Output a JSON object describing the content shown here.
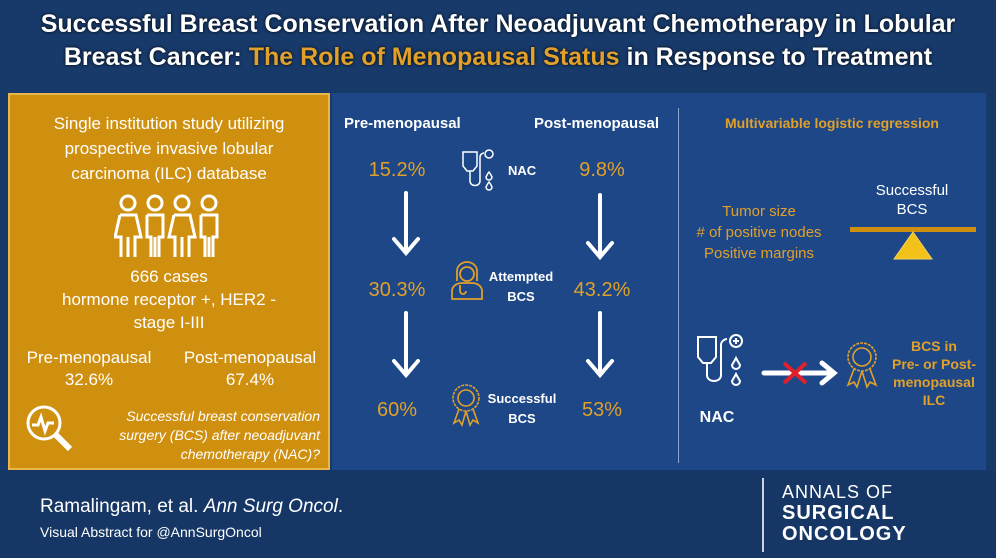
{
  "title": {
    "part1": "Successful Breast Conservation After Neoadjuvant Chemotherapy in Lobular",
    "part2": "Breast Cancer: ",
    "highlight": "The Role of Menopausal Status",
    "part3": " in Response to Treatment"
  },
  "left": {
    "study": [
      "Single institution study utilizing",
      "prospective invasive lobular",
      "carcinoma (ILC) database"
    ],
    "cases": [
      "666 cases",
      "hormone receptor +, HER2 -",
      "stage I-III"
    ],
    "pre_label": "Pre-menopausal",
    "pre_value": "32.6%",
    "post_label": "Post-menopausal",
    "post_value": "67.4%",
    "question": [
      "Successful breast conservation",
      "surgery (BCS) after neoadjuvant",
      "chemotherapy (NAC)?"
    ],
    "icons": [
      "women-group-icon",
      "magnifier-chart-icon"
    ]
  },
  "flow": {
    "pre_header": "Pre-menopausal",
    "post_header": "Post-menopausal",
    "steps": [
      {
        "label": "NAC",
        "pre": "15.2%",
        "post": "9.8%",
        "icon": "iv-drip-icon"
      },
      {
        "label1": "Attempted",
        "label2": "BCS",
        "pre": "30.3%",
        "post": "43.2%",
        "icon": "doctor-icon"
      },
      {
        "label1": "Successful",
        "label2": "BCS",
        "pre": "60%",
        "post": "53%",
        "icon": "award-ribbon-icon"
      }
    ]
  },
  "regression": {
    "title": "Multivariable logistic regression",
    "factors": [
      "Tumor size",
      "# of positive nodes",
      "Positive margins"
    ],
    "outcome": [
      "Successful",
      "BCS"
    ],
    "nac_label": "NAC",
    "result": [
      "BCS in",
      "Pre- or Post-",
      "menopausal",
      "ILC"
    ]
  },
  "footer": {
    "authors": "Ramalingam, et al. ",
    "journal": "Ann Surg Oncol",
    "period": ".",
    "subtitle": "Visual Abstract for @AnnSurgOncol",
    "logo": [
      "ANNALS OF",
      "SURGICAL",
      "ONCOLOGY"
    ]
  },
  "colors": {
    "gold": "#e0a02a",
    "panel": "#d0900f",
    "blue": "#1d4787",
    "red": "#e0202a"
  }
}
